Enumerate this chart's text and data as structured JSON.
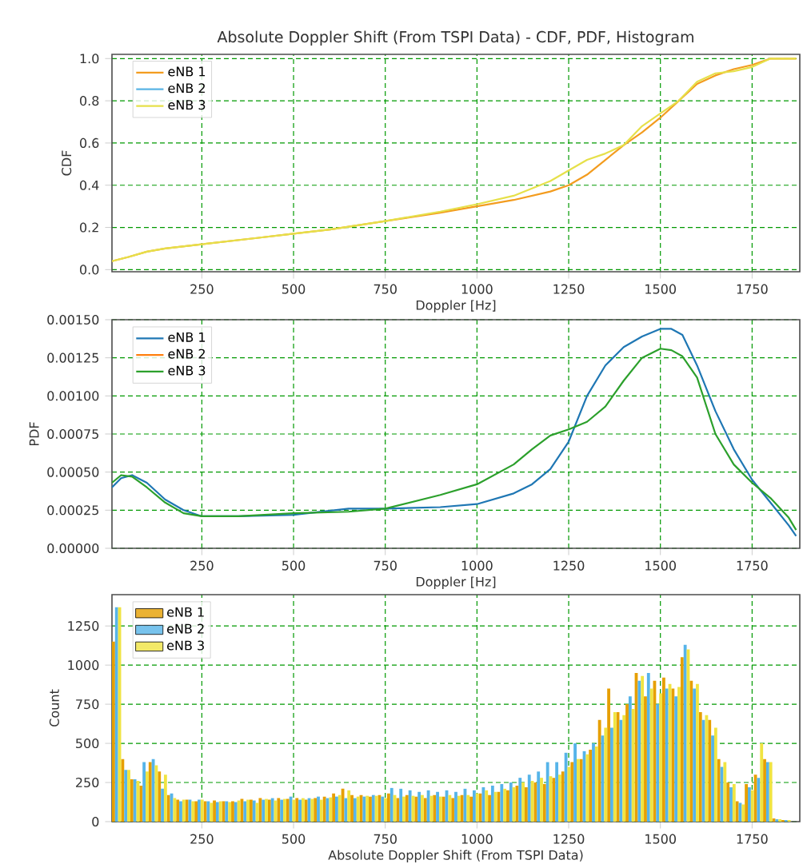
{
  "chart_data": [
    {
      "type": "line",
      "title": "Absolute Doppler Shift (From TSPI Data) - CDF, PDF, Histogram",
      "xlabel": "Doppler [Hz]",
      "ylabel": "CDF",
      "grid": true,
      "legend": "top left",
      "xlim": [
        5,
        1880
      ],
      "ylim": [
        -0.01,
        1.02
      ],
      "xticks": [
        250,
        500,
        750,
        1000,
        1250,
        1500,
        1750
      ],
      "yticks": [
        {
          "value": 0,
          "label": "0.0"
        },
        {
          "value": 0.2,
          "label": "0.2"
        },
        {
          "value": 0.4,
          "label": "0.4"
        },
        {
          "value": 0.6,
          "label": "0.6"
        },
        {
          "value": 0.8,
          "label": "0.8"
        },
        {
          "value": 1,
          "label": "1.0"
        }
      ],
      "x": [
        5,
        50,
        100,
        150,
        250,
        400,
        500,
        600,
        750,
        900,
        1000,
        1100,
        1200,
        1250,
        1300,
        1350,
        1400,
        1450,
        1500,
        1550,
        1600,
        1650,
        1700,
        1750,
        1800,
        1870
      ],
      "series": [
        {
          "name": "eNB 1",
          "color": "#f39c1f",
          "values": [
            0.04,
            0.06,
            0.085,
            0.1,
            0.12,
            0.15,
            0.17,
            0.19,
            0.23,
            0.27,
            0.3,
            0.33,
            0.37,
            0.4,
            0.45,
            0.52,
            0.59,
            0.65,
            0.72,
            0.8,
            0.88,
            0.92,
            0.95,
            0.97,
            1.0,
            1.0
          ]
        },
        {
          "name": "eNB 2",
          "color": "#5ab4e5",
          "values": [
            null,
            null,
            null,
            null,
            null,
            null,
            null,
            null,
            null,
            null,
            null,
            null,
            null,
            null,
            null,
            null,
            null,
            null,
            null,
            null,
            null,
            null,
            null,
            null,
            null,
            null
          ]
        },
        {
          "name": "eNB 3",
          "color": "#e6e04a",
          "values": [
            0.04,
            0.06,
            0.085,
            0.1,
            0.12,
            0.15,
            0.17,
            0.19,
            0.23,
            0.275,
            0.31,
            0.35,
            0.42,
            0.47,
            0.52,
            0.55,
            0.59,
            0.68,
            0.74,
            0.8,
            0.89,
            0.93,
            0.94,
            0.96,
            1.0,
            1.0
          ]
        }
      ]
    },
    {
      "type": "line",
      "xlabel": "Doppler [Hz]",
      "ylabel": "PDF",
      "grid": true,
      "legend": "top left",
      "xlim": [
        5,
        1880
      ],
      "ylim": [
        0,
        0.0015
      ],
      "xticks": [
        250,
        500,
        750,
        1000,
        1250,
        1500,
        1750
      ],
      "yticks": [
        {
          "value": 0,
          "label": "0.00000"
        },
        {
          "value": 0.00025,
          "label": "0.00025"
        },
        {
          "value": 0.0005,
          "label": "0.00050"
        },
        {
          "value": 0.00075,
          "label": "0.00075"
        },
        {
          "value": 0.001,
          "label": "0.00100"
        },
        {
          "value": 0.00125,
          "label": "0.00125"
        },
        {
          "value": 0.0015,
          "label": "0.00150"
        }
      ],
      "x": [
        5,
        30,
        60,
        100,
        150,
        200,
        250,
        350,
        500,
        650,
        750,
        900,
        1000,
        1100,
        1150,
        1200,
        1250,
        1300,
        1350,
        1400,
        1450,
        1500,
        1530,
        1560,
        1600,
        1650,
        1700,
        1750,
        1800,
        1850,
        1870
      ],
      "series": [
        {
          "name": "eNB 1",
          "color": "#1f77b4",
          "values": [
            0.0004,
            0.00046,
            0.00048,
            0.00043,
            0.00032,
            0.00025,
            0.00021,
            0.00021,
            0.00022,
            0.00026,
            0.00026,
            0.00027,
            0.00029,
            0.00036,
            0.00042,
            0.00052,
            0.0007,
            0.001,
            0.0012,
            0.00132,
            0.00139,
            0.00144,
            0.00144,
            0.0014,
            0.0012,
            0.0009,
            0.00065,
            0.00045,
            0.0003,
            0.00015,
            8e-05
          ]
        },
        {
          "name": "eNB 2",
          "color": "#ff7f0e",
          "values": [
            null,
            null,
            null,
            null,
            null,
            null,
            null,
            null,
            null,
            null,
            null,
            null,
            null,
            null,
            null,
            null,
            null,
            null,
            null,
            null,
            null,
            null,
            null,
            null,
            null,
            null,
            null,
            null,
            null,
            null,
            null
          ]
        },
        {
          "name": "eNB 3",
          "color": "#2ca02c",
          "values": [
            0.00043,
            0.00048,
            0.00047,
            0.0004,
            0.0003,
            0.00023,
            0.00021,
            0.00021,
            0.00023,
            0.00024,
            0.00026,
            0.00035,
            0.00042,
            0.00055,
            0.00065,
            0.00074,
            0.00078,
            0.00083,
            0.00093,
            0.0011,
            0.00125,
            0.00131,
            0.0013,
            0.00126,
            0.00112,
            0.00075,
            0.00055,
            0.00043,
            0.00033,
            0.0002,
            0.00012
          ]
        }
      ]
    },
    {
      "type": "histogram",
      "xlabel": "Absolute Doppler Shift (From TSPI Data)",
      "ylabel": "Count",
      "grid": true,
      "legend": "top left",
      "xlim": [
        5,
        1880
      ],
      "ylim": [
        0,
        1450
      ],
      "xticks": [
        250,
        500,
        750,
        1000,
        1250,
        1500,
        1750
      ],
      "yticks": [
        0,
        250,
        500,
        750,
        1000,
        1250
      ],
      "bins": [
        5,
        30,
        55,
        80,
        105,
        130,
        155,
        180,
        205,
        230,
        255,
        280,
        305,
        330,
        355,
        380,
        405,
        430,
        455,
        480,
        505,
        530,
        555,
        580,
        605,
        630,
        655,
        680,
        705,
        730,
        755,
        780,
        805,
        830,
        855,
        880,
        905,
        930,
        955,
        980,
        1005,
        1030,
        1055,
        1080,
        1105,
        1130,
        1155,
        1180,
        1205,
        1230,
        1255,
        1280,
        1305,
        1330,
        1355,
        1380,
        1405,
        1430,
        1455,
        1480,
        1505,
        1530,
        1555,
        1580,
        1605,
        1630,
        1655,
        1680,
        1705,
        1730,
        1755,
        1780,
        1805,
        1830,
        1855,
        1880
      ],
      "series": [
        {
          "name": "eNB 1",
          "color": "#e69f00",
          "values": [
            1150,
            400,
            270,
            230,
            380,
            320,
            170,
            140,
            140,
            130,
            130,
            135,
            130,
            130,
            145,
            140,
            150,
            140,
            150,
            145,
            150,
            140,
            150,
            160,
            180,
            210,
            170,
            170,
            160,
            170,
            180,
            150,
            170,
            160,
            150,
            170,
            160,
            150,
            170,
            160,
            180,
            170,
            190,
            200,
            230,
            220,
            250,
            240,
            280,
            320,
            380,
            400,
            460,
            650,
            850,
            700,
            750,
            950,
            800,
            900,
            920,
            850,
            1050,
            900,
            700,
            650,
            400,
            250,
            130,
            240,
            300,
            400,
            20,
            10,
            null
          ]
        },
        {
          "name": "eNB 2",
          "color": "#56b4e9",
          "values": [
            1370,
            330,
            270,
            380,
            400,
            210,
            180,
            130,
            140,
            140,
            130,
            125,
            130,
            125,
            130,
            135,
            140,
            150,
            140,
            160,
            140,
            150,
            160,
            150,
            160,
            150,
            150,
            160,
            170,
            160,
            215,
            210,
            200,
            190,
            200,
            190,
            200,
            190,
            210,
            200,
            220,
            230,
            240,
            250,
            280,
            300,
            320,
            380,
            380,
            440,
            500,
            450,
            500,
            550,
            600,
            650,
            800,
            900,
            950,
            750,
            850,
            800,
            1130,
            850,
            650,
            550,
            350,
            220,
            120,
            220,
            280,
            380,
            15,
            10,
            null
          ]
        },
        {
          "name": "eNB 3",
          "color": "#f0e442",
          "values": [
            1370,
            330,
            260,
            320,
            360,
            300,
            150,
            140,
            130,
            140,
            120,
            130,
            125,
            135,
            140,
            120,
            145,
            135,
            145,
            140,
            150,
            145,
            140,
            155,
            170,
            200,
            160,
            165,
            165,
            150,
            170,
            160,
            165,
            170,
            165,
            160,
            170,
            165,
            170,
            180,
            200,
            190,
            210,
            220,
            250,
            260,
            280,
            290,
            300,
            350,
            400,
            430,
            480,
            600,
            700,
            680,
            720,
            930,
            850,
            820,
            880,
            860,
            1100,
            880,
            680,
            600,
            380,
            240,
            110,
            200,
            500,
            380,
            15,
            10,
            null
          ]
        }
      ]
    }
  ]
}
